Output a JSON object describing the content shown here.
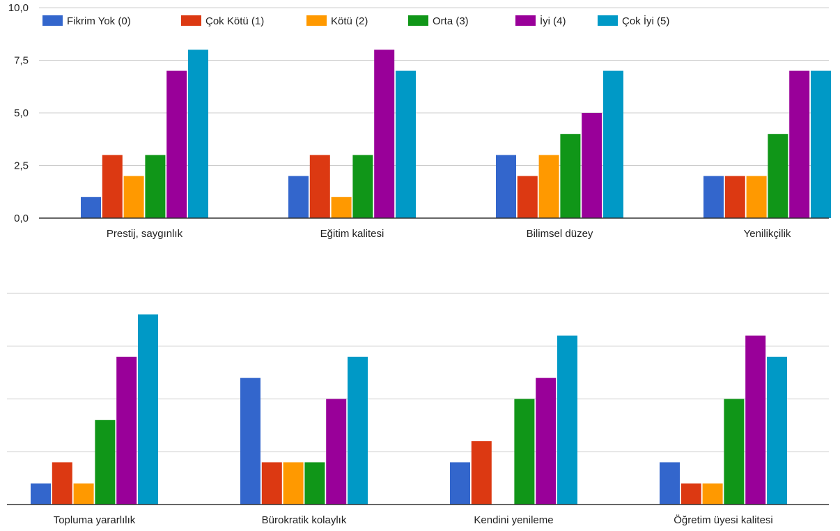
{
  "chart_data": [
    {
      "type": "bar",
      "categories": [
        "Prestij, saygınlık",
        "Eğitim kalitesi",
        "Bilimsel düzey",
        "Yenilikçilik"
      ],
      "series": [
        {
          "name": "Fikrim Yok (0)",
          "color": "#3366cc",
          "values": [
            1,
            2,
            3,
            2
          ]
        },
        {
          "name": "Çok Kötü (1)",
          "color": "#dc3912",
          "values": [
            3,
            3,
            2,
            2
          ]
        },
        {
          "name": "Kötü (2)",
          "color": "#ff9900",
          "values": [
            2,
            1,
            3,
            2
          ]
        },
        {
          "name": "Orta (3)",
          "color": "#109618",
          "values": [
            3,
            3,
            4,
            4
          ]
        },
        {
          "name": "İyi (4)",
          "color": "#990099",
          "values": [
            7,
            8,
            5,
            7
          ]
        },
        {
          "name": "Çok İyi (5)",
          "color": "#0099c6",
          "values": [
            8,
            7,
            7,
            7
          ]
        }
      ],
      "yticks": [
        "0,0",
        "2,5",
        "5,0",
        "7,5",
        "10,0"
      ],
      "ylim": [
        0,
        10
      ],
      "legend": "top",
      "grid": true
    },
    {
      "type": "bar",
      "categories": [
        "Topluma yararlılık",
        "Bürokratik kolaylık",
        "Kendini yenileme",
        "Öğretim üyesi kalitesi"
      ],
      "series": [
        {
          "color": "#3366cc",
          "values": [
            1,
            6,
            2,
            2
          ]
        },
        {
          "color": "#dc3912",
          "values": [
            2,
            2,
            3,
            1
          ]
        },
        {
          "color": "#ff9900",
          "values": [
            1,
            2,
            0,
            1
          ]
        },
        {
          "color": "#109618",
          "values": [
            4,
            2,
            5,
            5
          ]
        },
        {
          "color": "#990099",
          "values": [
            7,
            5,
            6,
            8
          ]
        },
        {
          "color": "#0099c6",
          "values": [
            9,
            7,
            8,
            7
          ]
        }
      ],
      "ylim": [
        0,
        10
      ],
      "grid": true
    }
  ]
}
